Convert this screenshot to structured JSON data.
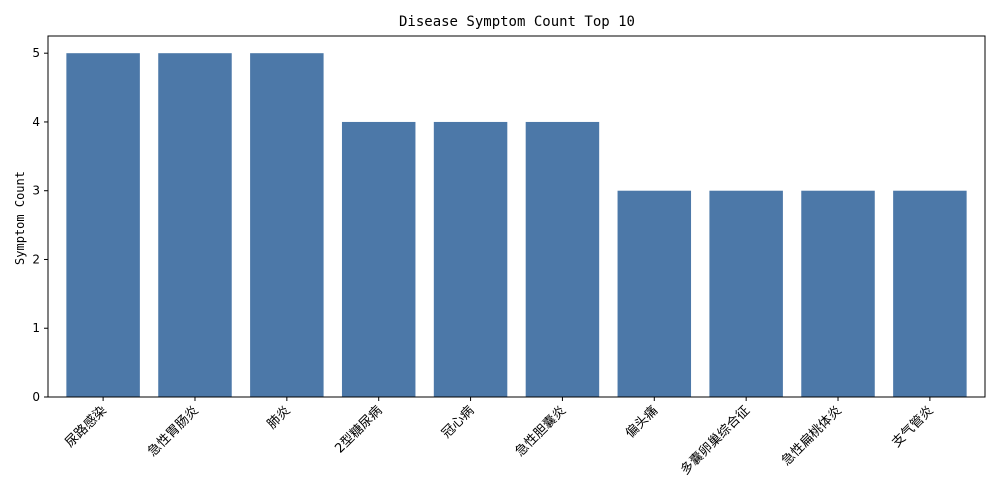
{
  "chart_data": {
    "type": "bar",
    "title": "Disease Symptom Count Top 10",
    "xlabel": "",
    "ylabel": "Symptom Count",
    "categories": [
      "尿路感染",
      "急性胃肠炎",
      "肺炎",
      "2型糖尿病",
      "冠心病",
      "急性胆囊炎",
      "偏头痛",
      "多囊卵巢综合征",
      "急性扁桃体炎",
      "支气管炎"
    ],
    "values": [
      5,
      5,
      5,
      4,
      4,
      4,
      3,
      3,
      3,
      3
    ],
    "ylim": [
      0,
      5.25
    ],
    "yticks": [
      0,
      1,
      2,
      3,
      4,
      5
    ],
    "grid": false,
    "legend": "none",
    "bar_color": "#4c78a8"
  }
}
